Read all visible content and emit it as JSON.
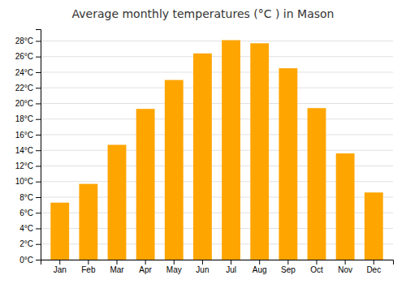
{
  "chart_data": {
    "type": "bar",
    "title": "Average monthly temperatures (°C ) in Mason",
    "categories": [
      "Jan",
      "Feb",
      "Mar",
      "Apr",
      "May",
      "Jun",
      "Jul",
      "Aug",
      "Sep",
      "Oct",
      "Nov",
      "Dec"
    ],
    "values": [
      7.3,
      9.7,
      14.7,
      19.3,
      23.0,
      26.4,
      28.1,
      27.7,
      24.5,
      19.4,
      13.6,
      8.6
    ],
    "color": "#FFA500",
    "ylim": [
      0,
      29.5
    ],
    "yticks": [
      {
        "value": 0,
        "label": "0°C"
      },
      {
        "value": 2,
        "label": "2°C"
      },
      {
        "value": 4,
        "label": "4°C"
      },
      {
        "value": 6,
        "label": "6°C"
      },
      {
        "value": 8,
        "label": "8°C"
      },
      {
        "value": 10,
        "label": "10°C"
      },
      {
        "value": 12,
        "label": "12°C"
      },
      {
        "value": 14,
        "label": "14°C"
      },
      {
        "value": 16,
        "label": "16°C"
      },
      {
        "value": 18,
        "label": "18°C"
      },
      {
        "value": 20,
        "label": "20°C"
      },
      {
        "value": 22,
        "label": "22°C"
      },
      {
        "value": 24,
        "label": "24°C"
      },
      {
        "value": 26,
        "label": "26°C"
      },
      {
        "value": 28,
        "label": "28°C"
      }
    ],
    "grid": true
  }
}
